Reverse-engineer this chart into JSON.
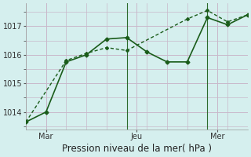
{
  "title": "Pression niveau de la mer( hPa )",
  "background_color": "#d5efee",
  "grid_color": "#c9b8ca",
  "line_color": "#1a5c1a",
  "line1_x": [
    0,
    1,
    2,
    3,
    4,
    5,
    6,
    7,
    8,
    9,
    10,
    11
  ],
  "line1_y": [
    1013.65,
    1014.0,
    1015.75,
    1016.0,
    1016.55,
    1016.6,
    1016.1,
    1015.75,
    1015.75,
    1017.3,
    1017.05,
    1017.4
  ],
  "line2_x": [
    0,
    2,
    3,
    4,
    5,
    8,
    9,
    10,
    11
  ],
  "line2_y": [
    1013.65,
    1015.8,
    1016.05,
    1016.25,
    1016.15,
    1017.25,
    1017.55,
    1017.15,
    1017.4
  ],
  "xtick_positions": [
    1,
    5.5,
    9.5
  ],
  "xtick_labels": [
    "Mar",
    "Jeu",
    "Mer"
  ],
  "ylim": [
    1013.4,
    1017.8
  ],
  "ytick_values": [
    1014,
    1015,
    1016,
    1017
  ],
  "vline_positions": [
    5,
    9
  ],
  "xlabel_fontsize": 8.5,
  "tick_fontsize": 7
}
